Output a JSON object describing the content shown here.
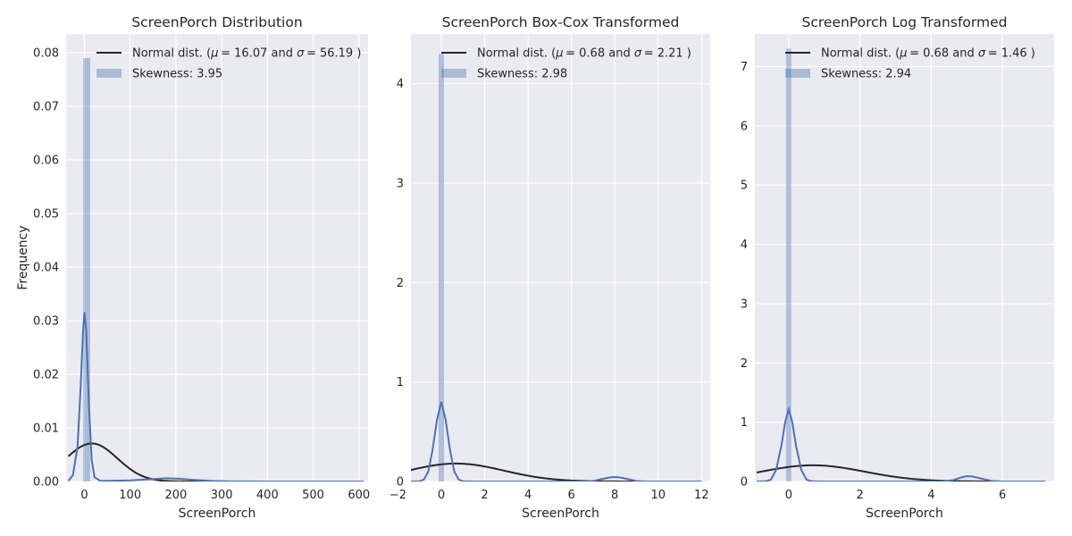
{
  "chart_data": [
    {
      "type": "histogram+kde",
      "title": "ScreenPorch Distribution",
      "xlabel": "ScreenPorch",
      "ylabel": "Frequency",
      "xlim": [
        -40,
        620
      ],
      "ylim": [
        0,
        0.0835
      ],
      "xticks": [
        0,
        100,
        200,
        300,
        400,
        500,
        600
      ],
      "xtick_labels": [
        "0",
        "100",
        "200",
        "300",
        "400",
        "500",
        "600"
      ],
      "yticks": [
        0,
        0.01,
        0.02,
        0.03,
        0.04,
        0.05,
        0.06,
        0.07,
        0.08
      ],
      "ytick_labels": [
        "0.00",
        "0.01",
        "0.02",
        "0.03",
        "0.04",
        "0.05",
        "0.06",
        "0.07",
        "0.08"
      ],
      "grid": true,
      "legend_position": "top-right",
      "normal_fit": {
        "mu": 16.07,
        "sigma": 56.19
      },
      "skewness": 3.95,
      "legend": {
        "normal_label_prefix": "Normal dist. (",
        "mu_text": "μ",
        "mu_value": "= 16.07",
        "and_text": " and ",
        "sigma_text": "σ",
        "sigma_value": "= 56.19",
        "close_text": ")",
        "skew_label": "Skewness: 3.95"
      },
      "hist_bars": [
        {
          "x0": -2.5,
          "x1": 12.5,
          "height": 0.079
        }
      ],
      "kde": [
        [
          -35,
          0.0001
        ],
        [
          -25,
          0.0012
        ],
        [
          -15,
          0.0065
        ],
        [
          -8,
          0.018
        ],
        [
          -3,
          0.028
        ],
        [
          0,
          0.0316
        ],
        [
          4,
          0.028
        ],
        [
          10,
          0.014
        ],
        [
          16,
          0.004
        ],
        [
          22,
          0.0008
        ],
        [
          35,
          0.0001
        ],
        [
          100,
          0.0002
        ],
        [
          140,
          0.0004
        ],
        [
          180,
          0.0006
        ],
        [
          210,
          0.0005
        ],
        [
          240,
          0.0003
        ],
        [
          280,
          0.0001
        ],
        [
          320,
          3e-05
        ],
        [
          400,
          0.0
        ],
        [
          500,
          0.0
        ],
        [
          610,
          0.0
        ]
      ]
    },
    {
      "type": "histogram+kde",
      "title": "ScreenPorch Box-Cox Transformed",
      "xlabel": "ScreenPorch",
      "ylabel": "",
      "xlim": [
        -1.4,
        12.4
      ],
      "ylim": [
        0,
        4.5
      ],
      "xticks": [
        -2,
        0,
        2,
        4,
        6,
        8,
        10,
        12
      ],
      "xtick_labels": [
        "−2",
        "0",
        "2",
        "4",
        "6",
        "8",
        "10",
        "12"
      ],
      "yticks": [
        0,
        1,
        2,
        3,
        4
      ],
      "ytick_labels": [
        "0",
        "1",
        "2",
        "3",
        "4"
      ],
      "grid": true,
      "legend_position": "top-right",
      "normal_fit": {
        "mu": 0.68,
        "sigma": 2.21
      },
      "skewness": 2.98,
      "legend": {
        "normal_label_prefix": "Normal dist. (",
        "mu_text": "μ",
        "mu_value": "= 0.68",
        "and_text": " and ",
        "sigma_text": "σ",
        "sigma_value": "= 2.21",
        "close_text": ")",
        "skew_label": "Skewness: 2.98"
      },
      "hist_bars": [
        {
          "x0": -0.12,
          "x1": 0.12,
          "height": 4.3
        }
      ],
      "kde": [
        [
          -1.4,
          0.0
        ],
        [
          -1.0,
          0.002
        ],
        [
          -0.8,
          0.02
        ],
        [
          -0.6,
          0.1
        ],
        [
          -0.4,
          0.32
        ],
        [
          -0.2,
          0.62
        ],
        [
          0.0,
          0.8
        ],
        [
          0.2,
          0.62
        ],
        [
          0.4,
          0.32
        ],
        [
          0.6,
          0.1
        ],
        [
          0.8,
          0.02
        ],
        [
          1.0,
          0.002
        ],
        [
          1.4,
          0.0
        ],
        [
          6.6,
          0.0
        ],
        [
          7.0,
          0.005
        ],
        [
          7.4,
          0.025
        ],
        [
          7.8,
          0.042
        ],
        [
          8.0,
          0.045
        ],
        [
          8.2,
          0.042
        ],
        [
          8.6,
          0.025
        ],
        [
          9.0,
          0.005
        ],
        [
          9.4,
          0.0
        ],
        [
          12.0,
          0.0
        ]
      ]
    },
    {
      "type": "histogram+kde",
      "title": "ScreenPorch Log Transformed",
      "xlabel": "ScreenPorch",
      "ylabel": "",
      "xlim": [
        -0.95,
        7.45
      ],
      "ylim": [
        0,
        7.55
      ],
      "xticks": [
        0,
        2,
        4,
        6
      ],
      "xtick_labels": [
        "0",
        "2",
        "4",
        "6"
      ],
      "yticks": [
        0,
        1,
        2,
        3,
        4,
        5,
        6,
        7
      ],
      "ytick_labels": [
        "0",
        "1",
        "2",
        "3",
        "4",
        "5",
        "6",
        "7"
      ],
      "grid": true,
      "legend_position": "top-right",
      "normal_fit": {
        "mu": 0.68,
        "sigma": 1.46
      },
      "skewness": 2.94,
      "legend": {
        "normal_label_prefix": "Normal dist. (",
        "mu_text": "μ",
        "mu_value": "= 0.68",
        "and_text": " and ",
        "sigma_text": "σ",
        "sigma_value": "= 1.46",
        "close_text": ")",
        "skew_label": "Skewness: 2.94"
      },
      "hist_bars": [
        {
          "x0": -0.07,
          "x1": 0.07,
          "height": 7.3
        }
      ],
      "kde": [
        [
          -0.9,
          0.0
        ],
        [
          -0.65,
          0.003
        ],
        [
          -0.5,
          0.03
        ],
        [
          -0.35,
          0.2
        ],
        [
          -0.2,
          0.62
        ],
        [
          -0.1,
          1.0
        ],
        [
          0.0,
          1.22
        ],
        [
          0.1,
          1.0
        ],
        [
          0.2,
          0.62
        ],
        [
          0.35,
          0.2
        ],
        [
          0.5,
          0.03
        ],
        [
          0.65,
          0.003
        ],
        [
          0.9,
          0.0
        ],
        [
          4.3,
          0.0
        ],
        [
          4.6,
          0.02
        ],
        [
          4.85,
          0.07
        ],
        [
          5.0,
          0.09
        ],
        [
          5.15,
          0.085
        ],
        [
          5.4,
          0.05
        ],
        [
          5.7,
          0.01
        ],
        [
          6.0,
          0.0
        ],
        [
          7.2,
          0.0
        ]
      ]
    }
  ],
  "colors": {
    "axes_bg": "#EAEAF2",
    "grid": "#FFFFFF",
    "hist_fill": "#4C72B0",
    "kde_line": "#4C72B0",
    "normal_line": "#262626",
    "text": "#262626"
  }
}
